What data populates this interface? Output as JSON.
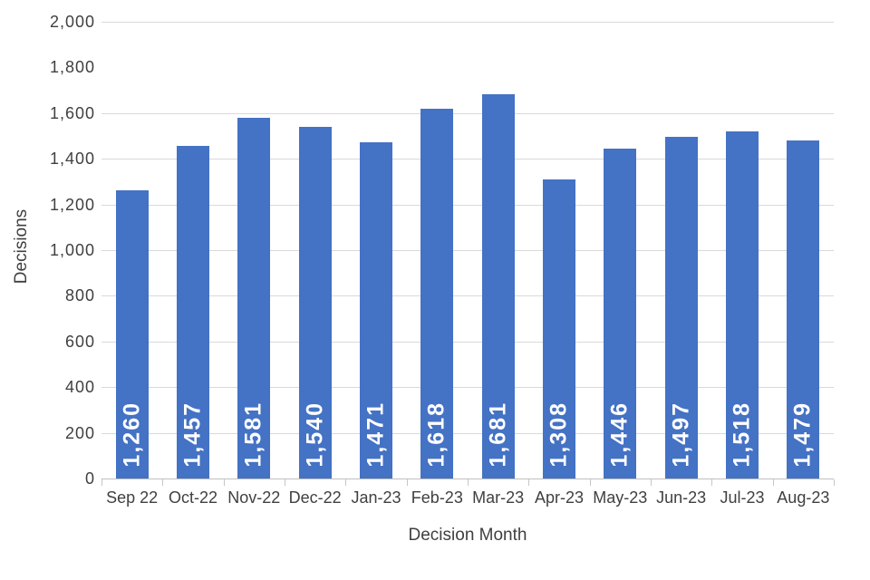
{
  "chart_data": {
    "type": "bar",
    "title": "",
    "xlabel": "Decision Month",
    "ylabel": "Decisions",
    "categories": [
      "Sep 22",
      "Oct-22",
      "Nov-22",
      "Dec-22",
      "Jan-23",
      "Feb-23",
      "Mar-23",
      "Apr-23",
      "May-23",
      "Jun-23",
      "Jul-23",
      "Aug-23"
    ],
    "values": [
      1260,
      1457,
      1581,
      1540,
      1471,
      1618,
      1681,
      1308,
      1446,
      1497,
      1518,
      1479
    ],
    "value_labels": [
      "1,260",
      "1,457",
      "1,581",
      "1,540",
      "1,471",
      "1,618",
      "1,681",
      "1,308",
      "1,446",
      "1,497",
      "1,518",
      "1,479"
    ],
    "ylim": [
      0,
      2000
    ],
    "ytick_step": 200,
    "ytick_values": [
      2000,
      1800,
      1600,
      1400,
      1200,
      1000,
      800,
      600,
      400,
      200,
      0
    ],
    "ytick_labels": [
      "2,000",
      "1,800",
      "1,600",
      "1,400",
      "1,200",
      "1,000",
      "800",
      "600",
      "400",
      "200",
      "0"
    ],
    "gridline_values": [
      2000,
      1600,
      1400,
      1200,
      1000,
      800,
      600,
      400,
      200
    ],
    "grid": "horizontal",
    "legend": "none",
    "data_label_position": "inside-base-rotated",
    "colors": {
      "bar": "#4472c4",
      "data_label": "#ffffff",
      "gridline": "#d9d9d9",
      "axis_line": "#bfbfbf",
      "axis_text": "#404040"
    }
  }
}
